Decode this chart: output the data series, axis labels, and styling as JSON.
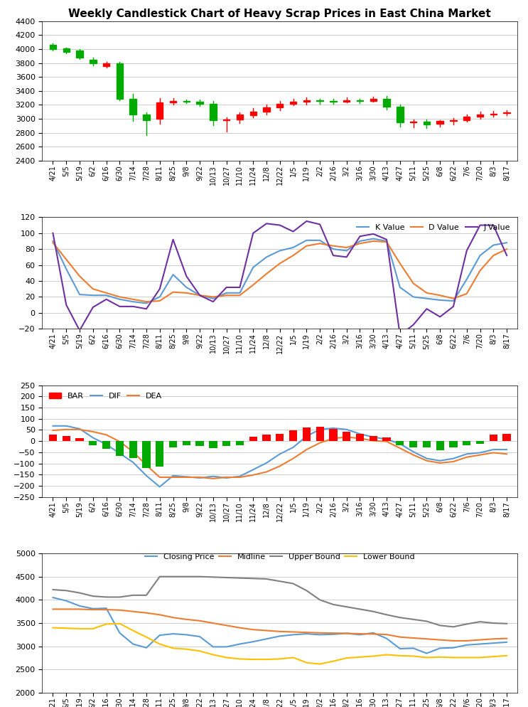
{
  "title": "Weekly Candlestick Chart of Heavy Scrap Prices in East China Market",
  "x_labels": [
    "4/21",
    "5/5",
    "5/19",
    "6/2",
    "6/16",
    "6/30",
    "7/14",
    "7/28",
    "8/11",
    "8/25",
    "9/8",
    "9/22",
    "10/13",
    "10/27",
    "11/10",
    "11/24",
    "12/8",
    "12/22",
    "1/5",
    "1/19",
    "2/2",
    "2/16",
    "3/2",
    "3/16",
    "3/30",
    "4/13",
    "4/27",
    "5/11",
    "5/25",
    "6/8",
    "6/22",
    "7/6",
    "7/20",
    "8/3",
    "8/17"
  ],
  "candle": {
    "open": [
      4060,
      4010,
      3980,
      3850,
      3760,
      3800,
      3290,
      3060,
      3000,
      3240,
      3260,
      3250,
      3220,
      2980,
      2990,
      3050,
      3100,
      3160,
      3220,
      3250,
      3270,
      3260,
      3250,
      3270,
      3260,
      3290,
      3170,
      2950,
      2960,
      2930,
      2970,
      2980,
      3030,
      3060,
      3080
    ],
    "close": [
      4000,
      3960,
      3880,
      3800,
      3800,
      3290,
      3060,
      2980,
      3240,
      3260,
      3250,
      3220,
      2980,
      2990,
      3060,
      3100,
      3160,
      3220,
      3250,
      3270,
      3260,
      3250,
      3270,
      3260,
      3290,
      3170,
      2950,
      2960,
      2920,
      2970,
      2980,
      3030,
      3060,
      3075,
      3095
    ],
    "high": [
      4080,
      4020,
      4000,
      3880,
      3820,
      3820,
      3360,
      3090,
      3300,
      3300,
      3280,
      3280,
      3260,
      3020,
      3090,
      3150,
      3210,
      3260,
      3290,
      3310,
      3290,
      3290,
      3310,
      3290,
      3320,
      3330,
      3200,
      2990,
      2990,
      2980,
      3010,
      3060,
      3100,
      3110,
      3120
    ],
    "low": [
      3980,
      3940,
      3860,
      3770,
      3740,
      3270,
      2970,
      2770,
      2930,
      3200,
      3230,
      3180,
      2910,
      2820,
      2940,
      3020,
      3060,
      3120,
      3190,
      3210,
      3220,
      3220,
      3240,
      3230,
      3250,
      3130,
      2890,
      2880,
      2870,
      2890,
      2920,
      2960,
      3000,
      3030,
      3055
    ]
  },
  "kdj": {
    "k": [
      90,
      55,
      23,
      22,
      22,
      17,
      14,
      12,
      20,
      48,
      32,
      22,
      18,
      25,
      25,
      57,
      70,
      78,
      82,
      91,
      91,
      80,
      78,
      90,
      93,
      90,
      32,
      20,
      18,
      16,
      15,
      42,
      72,
      85,
      88
    ],
    "d": [
      88,
      67,
      46,
      30,
      25,
      20,
      17,
      14,
      15,
      26,
      25,
      22,
      20,
      22,
      22,
      35,
      49,
      62,
      72,
      84,
      87,
      84,
      82,
      87,
      90,
      89,
      62,
      37,
      25,
      22,
      18,
      24,
      53,
      72,
      80
    ],
    "j": [
      100,
      10,
      -22,
      7,
      17,
      8,
      8,
      5,
      30,
      92,
      46,
      22,
      14,
      32,
      32,
      100,
      112,
      110,
      102,
      115,
      111,
      72,
      70,
      96,
      99,
      92,
      -28,
      -15,
      5,
      -5,
      8,
      78,
      110,
      110,
      72
    ]
  },
  "macd": {
    "bar": [
      28,
      22,
      12,
      -18,
      -35,
      -65,
      -75,
      -120,
      -115,
      -28,
      -18,
      -22,
      -30,
      -22,
      -18,
      18,
      28,
      32,
      48,
      62,
      65,
      55,
      42,
      32,
      22,
      15,
      -18,
      -28,
      -28,
      -42,
      -28,
      -18,
      -12,
      28,
      32
    ],
    "dif": [
      68,
      68,
      55,
      15,
      -15,
      -55,
      -95,
      -155,
      -205,
      -155,
      -160,
      -165,
      -158,
      -165,
      -158,
      -128,
      -98,
      -58,
      -28,
      22,
      52,
      58,
      52,
      32,
      18,
      8,
      -12,
      -48,
      -78,
      -88,
      -78,
      -58,
      -52,
      -38,
      -38
    ],
    "dea": [
      48,
      52,
      52,
      42,
      28,
      -2,
      -48,
      -108,
      -162,
      -162,
      -162,
      -162,
      -168,
      -162,
      -162,
      -152,
      -138,
      -112,
      -78,
      -38,
      -8,
      12,
      18,
      12,
      2,
      -2,
      -32,
      -62,
      -88,
      -98,
      -92,
      -72,
      -62,
      -52,
      -58
    ]
  },
  "boll": {
    "close": [
      4050,
      3980,
      3870,
      3810,
      3820,
      3290,
      3050,
      2970,
      3240,
      3270,
      3250,
      3210,
      2990,
      2990,
      3050,
      3100,
      3160,
      3220,
      3250,
      3270,
      3250,
      3260,
      3280,
      3250,
      3290,
      3170,
      2950,
      2960,
      2850,
      2960,
      2970,
      3030,
      3050,
      3070,
      3090
    ],
    "mid": [
      3800,
      3800,
      3800,
      3790,
      3790,
      3780,
      3750,
      3720,
      3680,
      3620,
      3580,
      3550,
      3500,
      3450,
      3400,
      3360,
      3340,
      3320,
      3310,
      3300,
      3290,
      3285,
      3280,
      3270,
      3265,
      3255,
      3200,
      3180,
      3160,
      3140,
      3120,
      3120,
      3140,
      3160,
      3170
    ],
    "upper": [
      4220,
      4200,
      4150,
      4080,
      4060,
      4060,
      4100,
      4100,
      4500,
      4500,
      4500,
      4500,
      4490,
      4480,
      4470,
      4460,
      4450,
      4400,
      4350,
      4200,
      4000,
      3900,
      3850,
      3800,
      3750,
      3680,
      3620,
      3580,
      3540,
      3450,
      3420,
      3480,
      3530,
      3500,
      3490
    ],
    "lower": [
      3400,
      3390,
      3380,
      3380,
      3480,
      3490,
      3340,
      3200,
      3050,
      2960,
      2940,
      2900,
      2820,
      2760,
      2730,
      2720,
      2720,
      2730,
      2760,
      2650,
      2620,
      2680,
      2750,
      2770,
      2790,
      2820,
      2800,
      2790,
      2760,
      2770,
      2760,
      2760,
      2760,
      2780,
      2800
    ]
  },
  "colors": {
    "candle_up": "#ff0000",
    "candle_down": "#00aa00",
    "k_line": "#5b9bd5",
    "d_line": "#ed7d31",
    "j_line": "#7030a0",
    "bar_pos": "#ff0000",
    "bar_neg": "#00aa00",
    "dif_line": "#5b9bd5",
    "dea_line": "#ed7d31",
    "close_line": "#5b9bd5",
    "mid_line": "#ed7d31",
    "upper_line": "#808080",
    "lower_line": "#ffc000",
    "background": "#ffffff",
    "grid": "#d0d0d0"
  }
}
